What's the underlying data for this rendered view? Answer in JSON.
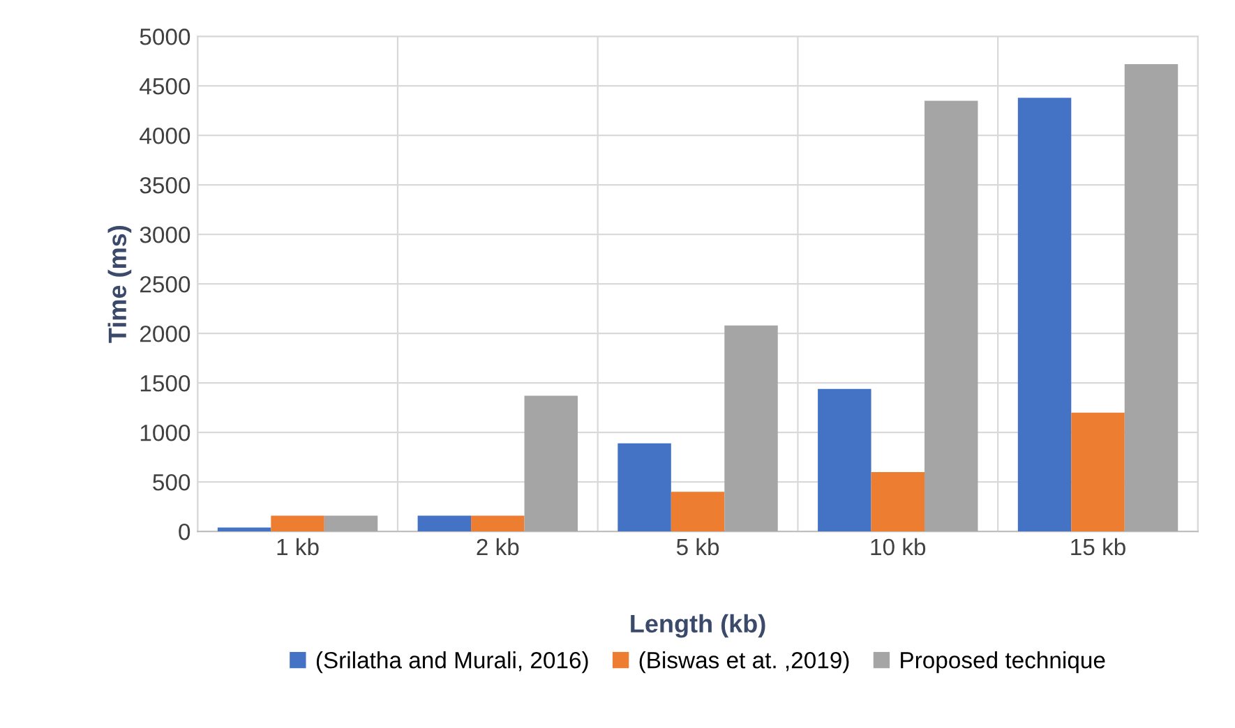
{
  "chart_data": {
    "type": "bar",
    "xlabel": "Length (kb)",
    "ylabel": "Time (ms)",
    "categories": [
      "1 kb",
      "2 kb",
      "5 kb",
      "10 kb",
      "15 kb"
    ],
    "series": [
      {
        "name": "(Srilatha and Murali, 2016)",
        "color": "#4472c4",
        "values": [
          40,
          160,
          890,
          1440,
          4380
        ]
      },
      {
        "name": "(Biswas et at. ,2019)",
        "color": "#ed7d31",
        "values": [
          160,
          160,
          400,
          600,
          1200
        ]
      },
      {
        "name": "Proposed technique",
        "color": "#a5a5a5",
        "values": [
          160,
          1370,
          2080,
          4350,
          4720
        ]
      }
    ],
    "ylim": [
      0,
      5000
    ],
    "yticks": [
      0,
      500,
      1000,
      1500,
      2000,
      2500,
      3000,
      3500,
      4000,
      4500,
      5000
    ],
    "grid": true,
    "legend": "bottom"
  }
}
